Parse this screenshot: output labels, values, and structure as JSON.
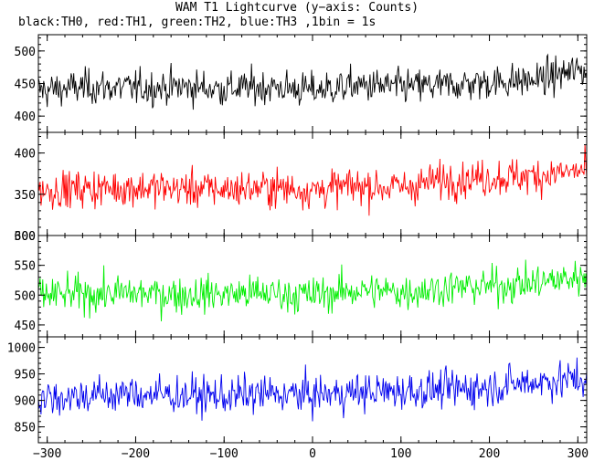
{
  "chart": {
    "title": "WAM T1 Lightcurve (y−axis: Counts)",
    "subtitle": "black:TH0, red:TH1, green:TH2, blue:TH3 ,1bin = 1s"
  },
  "chart_data": {
    "type": "line",
    "title": "WAM T1 Lightcurve (y−axis: Counts)",
    "subtitle": "black:TH0, red:TH1, green:TH2, blue:TH3 ,1bin = 1s",
    "x_range": [
      -310,
      310
    ],
    "x_ticks": [
      -300,
      -200,
      -100,
      0,
      100,
      200,
      300
    ],
    "bin_seconds": 1,
    "panels": [
      {
        "name": "TH0",
        "color": "#000000",
        "ylim": [
          375,
          525
        ],
        "y_ticks": [
          400,
          450,
          500
        ],
        "x": [
          -300,
          -250,
          -200,
          -150,
          -100,
          -50,
          0,
          50,
          100,
          150,
          200,
          250,
          300
        ],
        "values": [
          440,
          445,
          443,
          445,
          442,
          445,
          440,
          447,
          445,
          447,
          452,
          455,
          470
        ]
      },
      {
        "name": "TH1",
        "color": "#ff0000",
        "ylim": [
          300,
          425
        ],
        "y_ticks": [
          300,
          350,
          400
        ],
        "x": [
          -300,
          -250,
          -200,
          -150,
          -100,
          -50,
          0,
          50,
          100,
          150,
          200,
          250,
          300
        ],
        "values": [
          355,
          357,
          358,
          357,
          356,
          358,
          355,
          360,
          358,
          368,
          370,
          372,
          378
        ]
      },
      {
        "name": "TH2",
        "color": "#00ee00",
        "ylim": [
          430,
          600
        ],
        "y_ticks": [
          450,
          500,
          550,
          600
        ],
        "x": [
          -300,
          -250,
          -200,
          -150,
          -100,
          -50,
          0,
          50,
          100,
          150,
          200,
          250,
          300
        ],
        "values": [
          500,
          502,
          503,
          501,
          502,
          503,
          500,
          508,
          505,
          512,
          515,
          520,
          530
        ]
      },
      {
        "name": "TH3",
        "color": "#0000ee",
        "ylim": [
          820,
          1020
        ],
        "y_ticks": [
          850,
          900,
          950,
          1000
        ],
        "x": [
          -300,
          -250,
          -200,
          -150,
          -100,
          -50,
          0,
          50,
          100,
          150,
          200,
          250,
          300
        ],
        "values": [
          905,
          910,
          912,
          910,
          908,
          912,
          910,
          915,
          918,
          920,
          925,
          935,
          940
        ]
      }
    ]
  }
}
